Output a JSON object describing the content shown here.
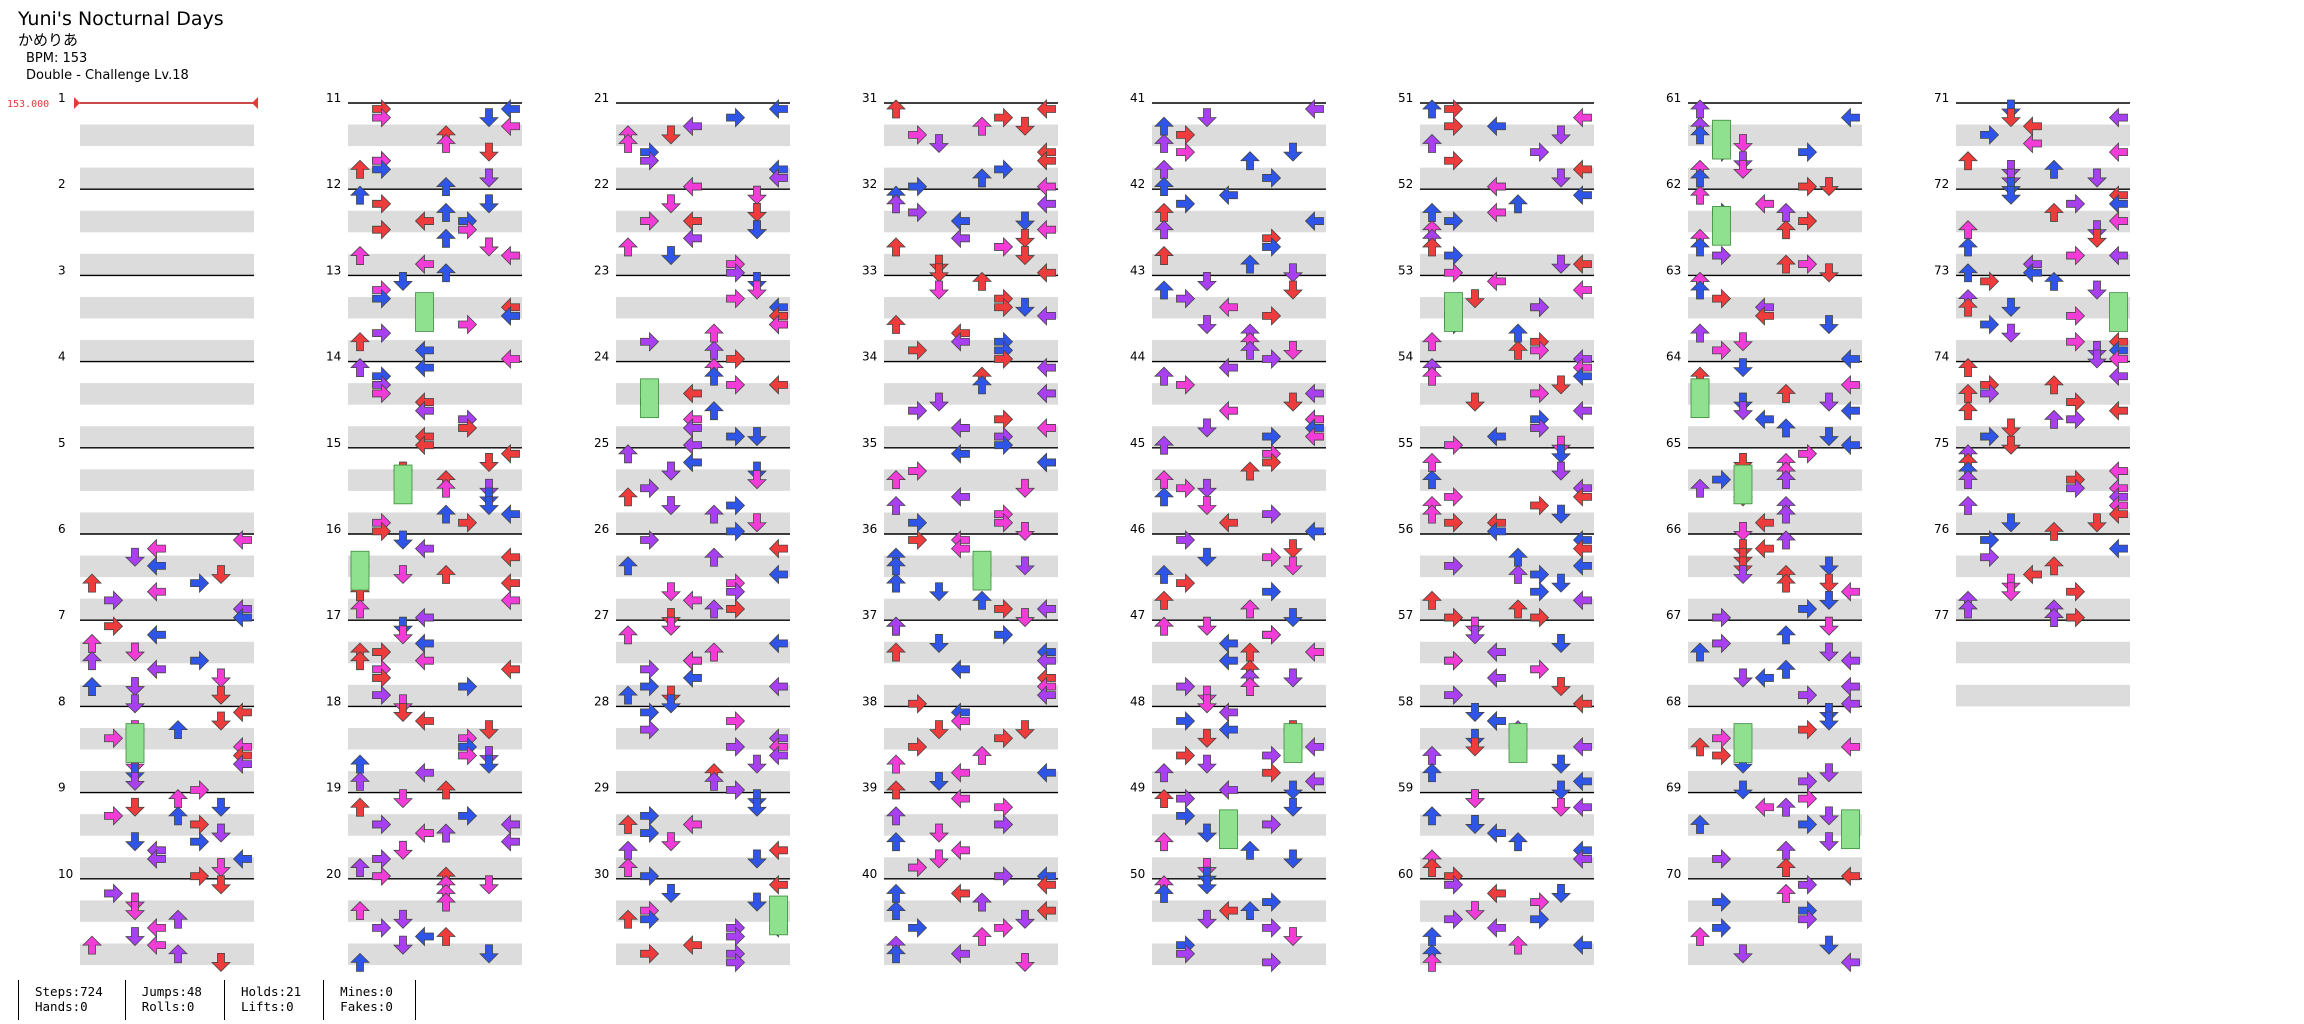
{
  "song": {
    "title": "Yuni's Nocturnal Days",
    "artist": "かめりあ",
    "bpm_label": "BPM: 153",
    "difficulty_label": "Double - Challenge Lv.18"
  },
  "bpm_change_label": "153.000",
  "measures": [
    "1",
    "2",
    "3",
    "4",
    "5",
    "6",
    "7",
    "8",
    "9",
    "10",
    "11",
    "12",
    "13",
    "14",
    "15",
    "16",
    "17",
    "18",
    "19",
    "20",
    "21",
    "22",
    "23",
    "24",
    "25",
    "26",
    "27",
    "28",
    "29",
    "30",
    "31",
    "32",
    "33",
    "34",
    "35",
    "36",
    "37",
    "38",
    "39",
    "40",
    "41",
    "42",
    "43",
    "44",
    "45",
    "46",
    "47",
    "48",
    "49",
    "50",
    "51",
    "52",
    "53",
    "54",
    "55",
    "56",
    "57",
    "58",
    "59",
    "60",
    "61",
    "62",
    "63",
    "64",
    "65",
    "66",
    "67",
    "68",
    "69",
    "70",
    "71",
    "72",
    "73",
    "74",
    "75",
    "76",
    "77"
  ],
  "measures_per_column": 10,
  "colors": {
    "arrow_red": "#ee3b3b",
    "arrow_blue": "#2f55e8",
    "arrow_pink": "#f23cd8",
    "arrow_purple": "#a83ff0",
    "arrow_orange": "#f59a3c",
    "arrow_yellow": "#f4d936",
    "hold_green": "#8fe08f",
    "band_gray": "#dcdcdc"
  },
  "stats": [
    {
      "top": "Steps:724",
      "bottom": "Hands:0"
    },
    {
      "top": "Jumps:48",
      "bottom": "Rolls:0"
    },
    {
      "top": "Holds:21",
      "bottom": "Lifts:0"
    },
    {
      "top": "Mines:0",
      "bottom": "Fakes:0"
    }
  ]
}
